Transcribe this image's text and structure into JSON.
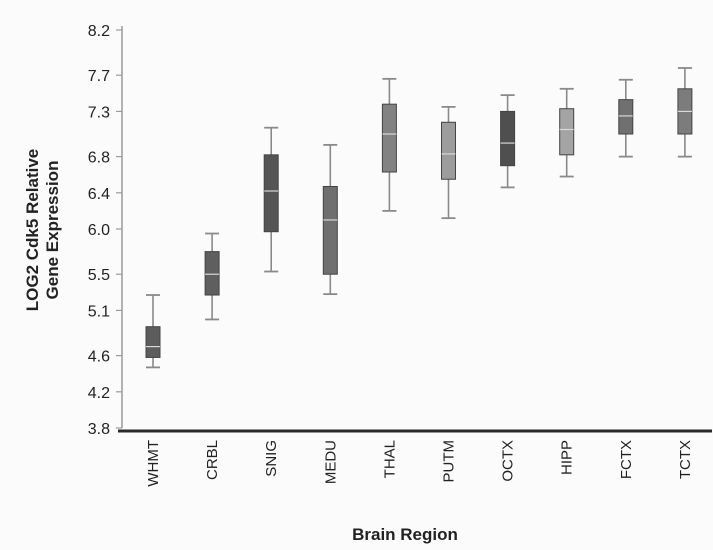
{
  "chart_data": {
    "type": "box",
    "title": "",
    "xlabel": "Brain Region",
    "ylabel_line1": "LOG2 Cdk5 Relative",
    "ylabel_line2": "Gene Expression",
    "ylim": [
      3.8,
      8.2
    ],
    "yticks": [
      "8.2",
      "7.7",
      "7.3",
      "6.8",
      "6.4",
      "6.0",
      "5.5",
      "5.1",
      "4.6",
      "4.2",
      "3.8"
    ],
    "categories": [
      "WHMT",
      "CRBL",
      "SNIG",
      "MEDU",
      "THAL",
      "PUTM",
      "OCTX",
      "HIPP",
      "FCTX",
      "TCTX"
    ],
    "boxes": [
      {
        "min": 4.47,
        "q1": 4.58,
        "median": 4.7,
        "q3": 4.92,
        "max": 5.27,
        "color": "#5c5c5c"
      },
      {
        "min": 5.0,
        "q1": 5.27,
        "median": 5.5,
        "q3": 5.75,
        "max": 5.95,
        "color": "#5f5f5f"
      },
      {
        "min": 5.53,
        "q1": 5.97,
        "median": 6.42,
        "q3": 6.82,
        "max": 7.12,
        "color": "#555555"
      },
      {
        "min": 5.28,
        "q1": 5.5,
        "median": 6.1,
        "q3": 6.47,
        "max": 6.93,
        "color": "#6f6f6f"
      },
      {
        "min": 6.2,
        "q1": 6.63,
        "median": 7.05,
        "q3": 7.38,
        "max": 7.66,
        "color": "#828282"
      },
      {
        "min": 6.12,
        "q1": 6.55,
        "median": 6.83,
        "q3": 7.18,
        "max": 7.35,
        "color": "#9c9c9c"
      },
      {
        "min": 6.46,
        "q1": 6.7,
        "median": 6.95,
        "q3": 7.3,
        "max": 7.48,
        "color": "#4f4f4f"
      },
      {
        "min": 6.58,
        "q1": 6.82,
        "median": 7.1,
        "q3": 7.33,
        "max": 7.55,
        "color": "#a4a4a4"
      },
      {
        "min": 6.8,
        "q1": 7.05,
        "median": 7.25,
        "q3": 7.43,
        "max": 7.65,
        "color": "#707070"
      },
      {
        "min": 6.8,
        "q1": 7.05,
        "median": 7.3,
        "q3": 7.55,
        "max": 7.78,
        "color": "#7c7c7c"
      }
    ],
    "grid": false,
    "legend": "none"
  }
}
